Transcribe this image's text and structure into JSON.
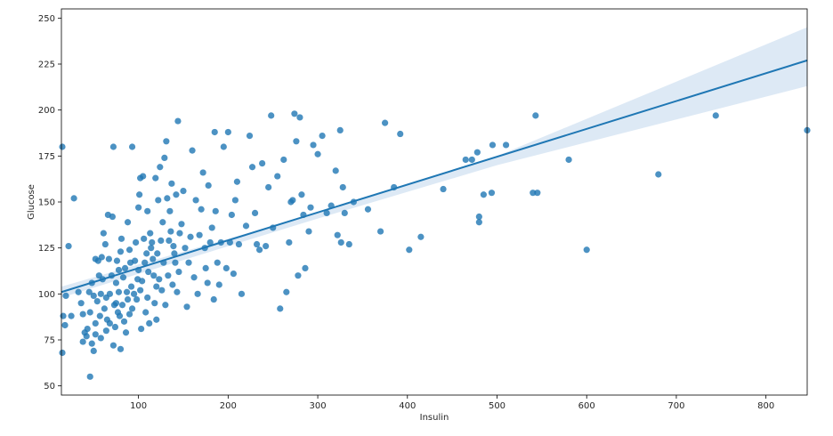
{
  "chart_data": {
    "type": "scatter",
    "title": "",
    "xlabel": "Insulin",
    "ylabel": "Glucose",
    "xlim": [
      14,
      846
    ],
    "ylim": [
      45,
      255
    ],
    "xticks": [
      100,
      200,
      300,
      400,
      500,
      600,
      700,
      800
    ],
    "yticks": [
      50,
      75,
      100,
      125,
      150,
      175,
      200,
      225,
      250
    ],
    "grid": false,
    "colors": {
      "points": "#1f77b4",
      "line": "#1f77b4",
      "band": "#c6dbef"
    },
    "regression": {
      "line": [
        [
          14,
          101
        ],
        [
          846,
          227
        ]
      ],
      "ci_upper": [
        [
          14,
          104
        ],
        [
          300,
          144
        ],
        [
          500,
          175
        ],
        [
          846,
          245
        ]
      ],
      "ci_lower": [
        [
          14,
          98
        ],
        [
          300,
          141
        ],
        [
          500,
          170
        ],
        [
          846,
          213
        ]
      ]
    },
    "points": [
      [
        15,
        180
      ],
      [
        15,
        68
      ],
      [
        16,
        88
      ],
      [
        18,
        83
      ],
      [
        19,
        99
      ],
      [
        22,
        126
      ],
      [
        25,
        88
      ],
      [
        28,
        152
      ],
      [
        33,
        101
      ],
      [
        36,
        95
      ],
      [
        38,
        89
      ],
      [
        38,
        74
      ],
      [
        40,
        79
      ],
      [
        42,
        77
      ],
      [
        43,
        81
      ],
      [
        45,
        101
      ],
      [
        46,
        90
      ],
      [
        46,
        55
      ],
      [
        48,
        106
      ],
      [
        48,
        73
      ],
      [
        50,
        99
      ],
      [
        50,
        69
      ],
      [
        52,
        84
      ],
      [
        52,
        78
      ],
      [
        52,
        119
      ],
      [
        54,
        96
      ],
      [
        55,
        118
      ],
      [
        56,
        110
      ],
      [
        57,
        88
      ],
      [
        58,
        100
      ],
      [
        58,
        76
      ],
      [
        59,
        120
      ],
      [
        60,
        108
      ],
      [
        61,
        133
      ],
      [
        62,
        92
      ],
      [
        63,
        127
      ],
      [
        64,
        98
      ],
      [
        64,
        80
      ],
      [
        65,
        86
      ],
      [
        66,
        143
      ],
      [
        67,
        119
      ],
      [
        68,
        100
      ],
      [
        68,
        84
      ],
      [
        70,
        110
      ],
      [
        71,
        142
      ],
      [
        72,
        180
      ],
      [
        72,
        72
      ],
      [
        73,
        94
      ],
      [
        74,
        82
      ],
      [
        75,
        106
      ],
      [
        75,
        95
      ],
      [
        76,
        118
      ],
      [
        77,
        90
      ],
      [
        78,
        113
      ],
      [
        78,
        101
      ],
      [
        79,
        88
      ],
      [
        80,
        123
      ],
      [
        80,
        70
      ],
      [
        81,
        130
      ],
      [
        82,
        94
      ],
      [
        83,
        109
      ],
      [
        84,
        85
      ],
      [
        85,
        114
      ],
      [
        86,
        79
      ],
      [
        87,
        101
      ],
      [
        88,
        139
      ],
      [
        88,
        97
      ],
      [
        90,
        89
      ],
      [
        90,
        124
      ],
      [
        91,
        117
      ],
      [
        92,
        104
      ],
      [
        93,
        92
      ],
      [
        93,
        180
      ],
      [
        95,
        100
      ],
      [
        96,
        118
      ],
      [
        97,
        128
      ],
      [
        98,
        97
      ],
      [
        99,
        108
      ],
      [
        100,
        113
      ],
      [
        100,
        147
      ],
      [
        101,
        154
      ],
      [
        102,
        163
      ],
      [
        102,
        102
      ],
      [
        103,
        81
      ],
      [
        104,
        107
      ],
      [
        105,
        164
      ],
      [
        106,
        130
      ],
      [
        107,
        117
      ],
      [
        108,
        90
      ],
      [
        109,
        122
      ],
      [
        110,
        98
      ],
      [
        110,
        145
      ],
      [
        111,
        112
      ],
      [
        112,
        84
      ],
      [
        113,
        133
      ],
      [
        114,
        125
      ],
      [
        115,
        128
      ],
      [
        116,
        119
      ],
      [
        117,
        110
      ],
      [
        118,
        95
      ],
      [
        119,
        163
      ],
      [
        120,
        86
      ],
      [
        120,
        104
      ],
      [
        121,
        122
      ],
      [
        122,
        151
      ],
      [
        123,
        108
      ],
      [
        124,
        169
      ],
      [
        125,
        129
      ],
      [
        126,
        102
      ],
      [
        127,
        139
      ],
      [
        128,
        117
      ],
      [
        129,
        174
      ],
      [
        130,
        94
      ],
      [
        131,
        183
      ],
      [
        132,
        152
      ],
      [
        133,
        110
      ],
      [
        134,
        129
      ],
      [
        135,
        145
      ],
      [
        136,
        134
      ],
      [
        137,
        160
      ],
      [
        138,
        105
      ],
      [
        139,
        126
      ],
      [
        140,
        122
      ],
      [
        141,
        117
      ],
      [
        142,
        154
      ],
      [
        143,
        101
      ],
      [
        144,
        194
      ],
      [
        145,
        112
      ],
      [
        146,
        133
      ],
      [
        148,
        138
      ],
      [
        150,
        156
      ],
      [
        152,
        125
      ],
      [
        154,
        93
      ],
      [
        156,
        117
      ],
      [
        158,
        131
      ],
      [
        160,
        178
      ],
      [
        162,
        109
      ],
      [
        164,
        151
      ],
      [
        166,
        100
      ],
      [
        168,
        132
      ],
      [
        170,
        146
      ],
      [
        172,
        166
      ],
      [
        174,
        125
      ],
      [
        175,
        114
      ],
      [
        177,
        106
      ],
      [
        178,
        159
      ],
      [
        180,
        128
      ],
      [
        182,
        136
      ],
      [
        184,
        97
      ],
      [
        185,
        188
      ],
      [
        186,
        145
      ],
      [
        188,
        117
      ],
      [
        190,
        105
      ],
      [
        192,
        128
      ],
      [
        195,
        180
      ],
      [
        198,
        114
      ],
      [
        200,
        188
      ],
      [
        202,
        128
      ],
      [
        204,
        143
      ],
      [
        206,
        111
      ],
      [
        208,
        151
      ],
      [
        210,
        161
      ],
      [
        212,
        127
      ],
      [
        215,
        100
      ],
      [
        220,
        137
      ],
      [
        224,
        186
      ],
      [
        227,
        169
      ],
      [
        230,
        144
      ],
      [
        232,
        127
      ],
      [
        235,
        124
      ],
      [
        238,
        171
      ],
      [
        242,
        126
      ],
      [
        245,
        158
      ],
      [
        248,
        197
      ],
      [
        250,
        136
      ],
      [
        255,
        164
      ],
      [
        258,
        92
      ],
      [
        262,
        173
      ],
      [
        265,
        101
      ],
      [
        268,
        128
      ],
      [
        270,
        150
      ],
      [
        272,
        151
      ],
      [
        274,
        198
      ],
      [
        276,
        183
      ],
      [
        278,
        110
      ],
      [
        280,
        196
      ],
      [
        282,
        154
      ],
      [
        284,
        143
      ],
      [
        286,
        114
      ],
      [
        290,
        134
      ],
      [
        292,
        147
      ],
      [
        295,
        181
      ],
      [
        300,
        176
      ],
      [
        305,
        186
      ],
      [
        310,
        144
      ],
      [
        315,
        148
      ],
      [
        320,
        167
      ],
      [
        322,
        132
      ],
      [
        325,
        189
      ],
      [
        326,
        128
      ],
      [
        328,
        158
      ],
      [
        330,
        144
      ],
      [
        335,
        127
      ],
      [
        340,
        150
      ],
      [
        356,
        146
      ],
      [
        370,
        134
      ],
      [
        375,
        193
      ],
      [
        385,
        158
      ],
      [
        392,
        187
      ],
      [
        402,
        124
      ],
      [
        415,
        131
      ],
      [
        440,
        157
      ],
      [
        465,
        173
      ],
      [
        472,
        173
      ],
      [
        478,
        177
      ],
      [
        480,
        142
      ],
      [
        480,
        139
      ],
      [
        485,
        154
      ],
      [
        494,
        155
      ],
      [
        495,
        181
      ],
      [
        510,
        181
      ],
      [
        540,
        155
      ],
      [
        543,
        197
      ],
      [
        545,
        155
      ],
      [
        580,
        173
      ],
      [
        600,
        124
      ],
      [
        680,
        165
      ],
      [
        744,
        197
      ],
      [
        846,
        189
      ]
    ]
  }
}
